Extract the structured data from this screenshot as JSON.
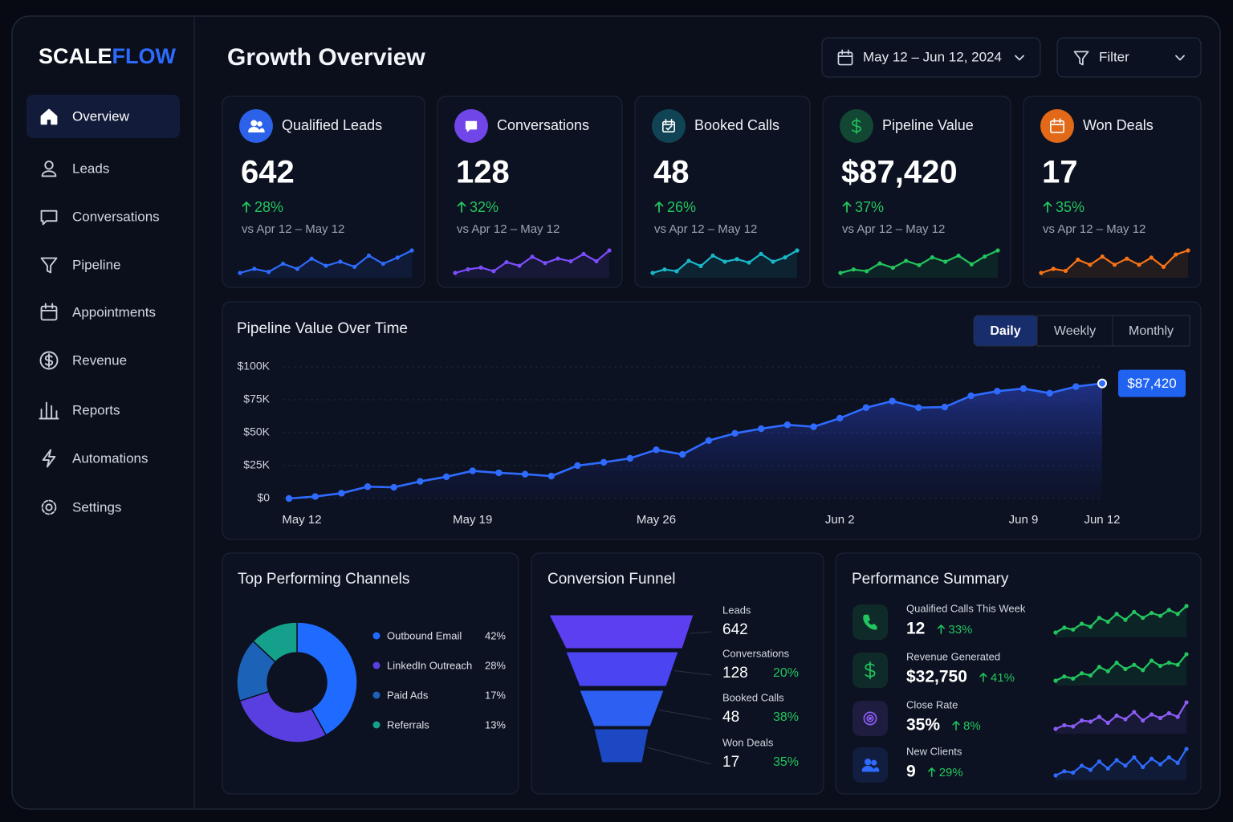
{
  "brand": {
    "name_first": "SCALE",
    "name_second": "FLOW"
  },
  "nav": {
    "items": [
      "Overview",
      "Leads",
      "Conversations",
      "Pipeline",
      "Appointments",
      "Revenue",
      "Reports",
      "Automations",
      "Settings"
    ],
    "active": 0
  },
  "header": {
    "title": "Growth Overview",
    "date_range": "May 12 – Jun 12, 2024",
    "filter": "Filter"
  },
  "kpis": [
    {
      "label": "Qualified Leads",
      "value": 642,
      "change": "28%",
      "comparison": "vs Apr 12 – May 12",
      "color": "#2f6bff",
      "sparkline": [
        10,
        14,
        11,
        19,
        14,
        24,
        17,
        21,
        16,
        27,
        19,
        25,
        32
      ]
    },
    {
      "label": "Conversations",
      "value": 128,
      "change": "32%",
      "comparison": "vs Apr 12 – May 12",
      "color": "#7c4dff",
      "sparkline": [
        6,
        10,
        12,
        8,
        18,
        14,
        24,
        17,
        22,
        19,
        27,
        19,
        31
      ]
    },
    {
      "label": "Booked Calls",
      "value": 48,
      "change": "26%",
      "comparison": "vs Apr 12 – May 12",
      "color": "#19b8c9",
      "sparkline": [
        8,
        12,
        10,
        22,
        16,
        28,
        21,
        24,
        20,
        30,
        21,
        26,
        34
      ]
    },
    {
      "label": "Pipeline Value",
      "value": "$87,420",
      "change": "37%",
      "comparison": "vs Apr 12 – May 12",
      "color": "#22c55e",
      "sparkline": [
        8,
        12,
        10,
        19,
        14,
        22,
        17,
        26,
        21,
        28,
        18,
        27,
        34
      ]
    },
    {
      "label": "Won Deals",
      "value": 17,
      "change": "35%",
      "comparison": "vs Apr 12 – May 12",
      "color": "#f97316",
      "sparkline": [
        8,
        12,
        10,
        21,
        16,
        24,
        16,
        22,
        16,
        23,
        14,
        26,
        30
      ]
    }
  ],
  "chart_data": [
    {
      "type": "line",
      "title": "Pipeline Value Over Time",
      "tabs": [
        "Daily",
        "Weekly",
        "Monthly"
      ],
      "active_tab": 0,
      "categories": [
        "May 12",
        null,
        null,
        null,
        null,
        null,
        null,
        "May 19",
        null,
        null,
        null,
        null,
        null,
        null,
        "May 26",
        null,
        null,
        null,
        null,
        null,
        null,
        "Jun 2",
        null,
        null,
        null,
        null,
        null,
        null,
        "Jun 9",
        null,
        null,
        "Jun 12"
      ],
      "values": [
        0,
        1500,
        4000,
        9000,
        8500,
        13000,
        16500,
        21000,
        19500,
        18500,
        17000,
        25000,
        27500,
        30500,
        37000,
        33500,
        44000,
        49500,
        53000,
        56000,
        54500,
        61000,
        69000,
        74000,
        69000,
        69500,
        78000,
        81500,
        83500,
        80000,
        85000,
        87420
      ],
      "value_labels": [
        null,
        null,
        null,
        null,
        null,
        null,
        null,
        null,
        null,
        null,
        null,
        null,
        null,
        null,
        null,
        null,
        null,
        null,
        null,
        null,
        null,
        null,
        null,
        null,
        null,
        null,
        null,
        null,
        null,
        null,
        null,
        "$87,420"
      ],
      "color": "#2f6bff",
      "ylim": [
        0,
        100000
      ],
      "yticks": [
        {
          "value": 0,
          "label": "$0"
        },
        {
          "value": 25000,
          "label": "$25K"
        },
        {
          "value": 50000,
          "label": "$50K"
        },
        {
          "value": 75000,
          "label": "$75K"
        },
        {
          "value": 100000,
          "label": "$100K"
        }
      ],
      "grid": true
    },
    {
      "type": "pie",
      "title": "Top Performing Channels",
      "categories": [
        "Outbound Email",
        "LinkedIn Outreach",
        "Paid Ads",
        "Referrals"
      ],
      "values": [
        42,
        28,
        17,
        13
      ],
      "value_labels": [
        "42%",
        "28%",
        "17%",
        "13%"
      ],
      "colors": [
        "#1f6bff",
        "#5a3fe0",
        "#1c63b8",
        "#14a08a"
      ]
    }
  ],
  "funnel": {
    "title": "Conversion Funnel",
    "colors": [
      "#5b3ff0",
      "#4a45f0",
      "#2d5ff2",
      "#1d48c4"
    ],
    "stages": [
      {
        "name": "Leads",
        "value": 642
      },
      {
        "name": "Conversations",
        "value": 128,
        "rate": "20%"
      },
      {
        "name": "Booked Calls",
        "value": 48,
        "rate": "38%"
      },
      {
        "name": "Won Deals",
        "value": 17,
        "rate": "35%"
      }
    ]
  },
  "performance": {
    "title": "Performance Summary",
    "items": [
      {
        "label": "Qualified Calls This Week",
        "value": 12,
        "change": "33%",
        "color": "#22c55e",
        "sparkline": [
          5,
          10,
          8,
          14,
          11,
          20,
          16,
          24,
          18,
          26,
          20,
          25,
          22,
          28,
          24,
          32
        ]
      },
      {
        "label": "Revenue Generated",
        "value": "$32,750",
        "change": "41%",
        "color": "#22c55e",
        "sparkline": [
          5,
          9,
          7,
          12,
          10,
          18,
          14,
          22,
          16,
          20,
          15,
          24,
          19,
          22,
          20,
          30
        ]
      },
      {
        "label": "Close Rate",
        "value": "35%",
        "change": "8%",
        "color": "#8b5cf6",
        "sparkline": [
          6,
          9,
          8,
          13,
          12,
          16,
          11,
          17,
          14,
          20,
          13,
          18,
          15,
          19,
          16,
          28
        ]
      },
      {
        "label": "New Clients",
        "value": 9,
        "change": "29%",
        "color": "#2f6bff",
        "sparkline": [
          5,
          8,
          7,
          12,
          9,
          15,
          10,
          16,
          12,
          18,
          11,
          17,
          13,
          18,
          14,
          24
        ]
      }
    ]
  }
}
